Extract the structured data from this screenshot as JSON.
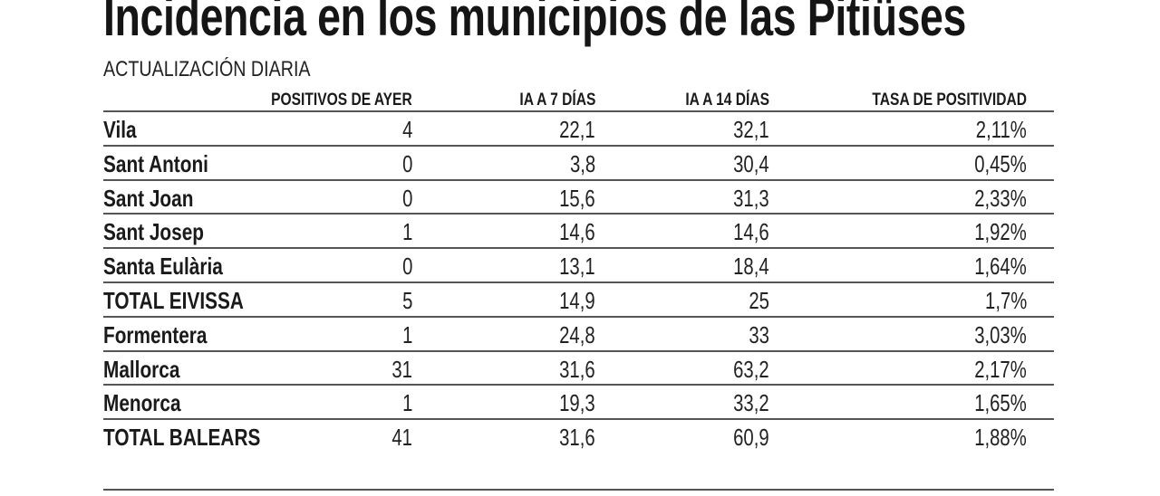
{
  "title": "Incidencia en los municipios de las Pitiüses",
  "subtitle": "ACTUALIZACIÓN DIARIA",
  "columns": [
    "POSITIVOS DE AYER",
    "IA A 7 DÍAS",
    "IA A 14 DÍAS",
    "TASA DE POSITIVIDAD"
  ],
  "rows": [
    {
      "name": "Vila",
      "values": [
        "4",
        "22,1",
        "32,1",
        "2,11%"
      ]
    },
    {
      "name": "Sant Antoni",
      "values": [
        "0",
        "3,8",
        "30,4",
        "0,45%"
      ]
    },
    {
      "name": "Sant Joan",
      "values": [
        "0",
        "15,6",
        "31,3",
        "2,33%"
      ]
    },
    {
      "name": "Sant Josep",
      "values": [
        "1",
        "14,6",
        "14,6",
        "1,92%"
      ]
    },
    {
      "name": "Santa Eulària",
      "values": [
        "0",
        "13,1",
        "18,4",
        "1,64%"
      ]
    },
    {
      "name": "TOTAL EIVISSA",
      "values": [
        "5",
        "14,9",
        "25",
        "1,7%"
      ]
    },
    {
      "name": "Formentera",
      "values": [
        "1",
        "24,8",
        "33",
        "3,03%"
      ]
    },
    {
      "name": "Mallorca",
      "values": [
        "31",
        "31,6",
        "63,2",
        "2,17%"
      ]
    },
    {
      "name": "Menorca",
      "values": [
        "1",
        "19,3",
        "33,2",
        "1,65%"
      ]
    },
    {
      "name": "TOTAL BALEARS",
      "values": [
        "41",
        "31,6",
        "60,9",
        "1,88%"
      ]
    }
  ]
}
